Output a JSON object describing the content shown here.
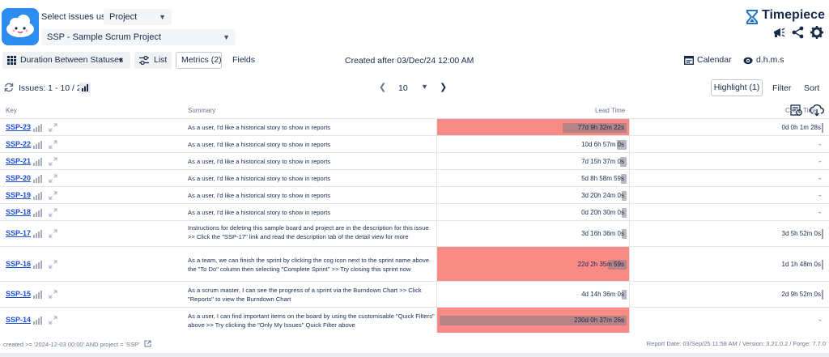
{
  "header": {
    "select_label": "Select issues using",
    "mode_select": "Project",
    "project_select": "SSP - Sample Scrum Project",
    "brand_name": "Timepiece",
    "icons": [
      "announcement-icon",
      "share-icon",
      "gear-icon"
    ]
  },
  "toolbar": {
    "duration_label": "Duration Between Statuses",
    "list_label": "List",
    "metrics_label": "Metrics (2)",
    "fields_label": "Fields",
    "filter_text": "Created after 03/Dec/24 12:00 AM",
    "calendar_label": "Calendar",
    "time_format_label": "d.h.m.s"
  },
  "issues_bar": {
    "count_label": "Issues: 1 - 10 / 23",
    "page_size": "10",
    "highlight_label": "Highlight (1)",
    "filter_label": "Filter",
    "sort_label": "Sort"
  },
  "table": {
    "columns": {
      "key": "Key",
      "summary": "Summary",
      "lead_time": "Lead Time",
      "cycle_time": "Cycle Time"
    },
    "rows": [
      {
        "key": "SSP-23",
        "summary": "As a user, I'd like a historical story to show in reports",
        "lead_time": "77d 9h 32m 22s",
        "cycle_time": "0d 0h 1m 28s",
        "highlighted": true,
        "lead_fraction": 0.34
      },
      {
        "key": "SSP-22",
        "summary": "As a user, I'd like a historical story to show in reports",
        "lead_time": "10d 6h 57m 0s",
        "cycle_time": "-",
        "highlighted": false,
        "lead_fraction": 0.05
      },
      {
        "key": "SSP-21",
        "summary": "As a user, I'd like a historical story to show in reports",
        "lead_time": "7d 15h 37m 0s",
        "cycle_time": "-",
        "highlighted": false,
        "lead_fraction": 0.035
      },
      {
        "key": "SSP-20",
        "summary": "As a user, I'd like a historical story to show in reports",
        "lead_time": "5d 8h 58m 59s",
        "cycle_time": "-",
        "highlighted": false,
        "lead_fraction": 0.03
      },
      {
        "key": "SSP-19",
        "summary": "As a user, I'd like a historical story to show in reports",
        "lead_time": "3d 20h 24m 0s",
        "cycle_time": "-",
        "highlighted": false,
        "lead_fraction": 0.02
      },
      {
        "key": "SSP-18",
        "summary": "As a user, I'd like a historical story to show in reports",
        "lead_time": "0d 20h 30m 0s",
        "cycle_time": "-",
        "highlighted": false,
        "lead_fraction": 0.01
      },
      {
        "key": "SSP-17",
        "summary": "Instructions for deleting this sample board and project are in the description for this issue >> Click the \"SSP-17\" link and read the description tab of the detail view for more",
        "lead_time": "3d 16h 36m 0s",
        "cycle_time": "3d 5h 52m 0s",
        "highlighted": false,
        "lead_fraction": 0.02
      },
      {
        "key": "SSP-16",
        "summary": "As a team, we can finish the sprint by clicking the cog icon next to the sprint name above the \"To Do\" column then selecting \"Complete Sprint\" >> Try closing this sprint now",
        "lead_time": "22d 2h 35m 59s",
        "cycle_time": "1d 1h 48m 0s",
        "highlighted": true,
        "lead_fraction": 0.1
      },
      {
        "key": "SSP-15",
        "summary": "As a scrum master, I can see the progress of a sprint via the Burndown Chart >> Click \"Reports\" to view the Burndown Chart",
        "lead_time": "4d 14h 36m 0s",
        "cycle_time": "2d 9h 52m 0s",
        "highlighted": false,
        "lead_fraction": 0.02
      },
      {
        "key": "SSP-14",
        "summary": "As a user, I can find important items on the board by using the customisable \"Quick Filters\" above >> Try clicking the \"Only My Issues\" Quick Filter above",
        "lead_time": "230d 0h 37m 26s",
        "cycle_time": "-",
        "highlighted": true,
        "lead_fraction": 1.0
      }
    ]
  },
  "footer": {
    "jql": "created >= '2024-12-03 00:00' AND project = 'SSP'",
    "report_info": "Report Date: 03/Sep/25 11:58 AM / Version: 3.21.0.2 / Forge: 7.7.0"
  }
}
